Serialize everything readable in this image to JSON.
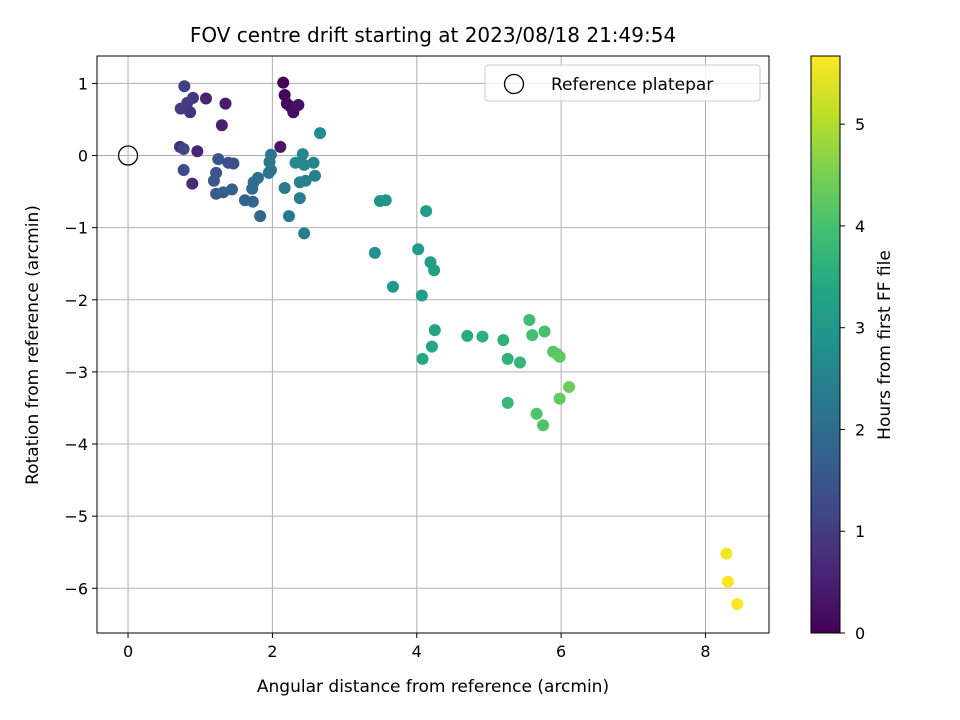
{
  "chart_data": {
    "type": "scatter",
    "title": "FOV centre drift starting at 2023/08/18 21:49:54",
    "xlabel": "Angular distance from reference (arcmin)",
    "ylabel": "Rotation from reference (arcmin)",
    "xlim": [
      -0.43,
      8.88
    ],
    "ylim": [
      -6.62,
      1.38
    ],
    "xticks": [
      0,
      2,
      4,
      6,
      8
    ],
    "yticks": [
      1,
      0,
      -1,
      -2,
      -3,
      -4,
      -5,
      -6
    ],
    "grid": true,
    "legend": {
      "position": "top-right",
      "entries": [
        "Reference platepar"
      ]
    },
    "reference_point": {
      "x": 0,
      "y": 0
    },
    "colorbar": {
      "label": "Hours from first FF file",
      "range": [
        0,
        5.67
      ],
      "ticks": [
        0,
        1,
        2,
        3,
        4,
        5
      ],
      "colormap": "viridis"
    },
    "points": [
      {
        "x": 2.15,
        "y": 1.01,
        "h": 0.0
      },
      {
        "x": 2.17,
        "y": 0.84,
        "h": 0.05
      },
      {
        "x": 2.2,
        "y": 0.72,
        "h": 0.1
      },
      {
        "x": 2.25,
        "y": 0.68,
        "h": 0.15
      },
      {
        "x": 2.29,
        "y": 0.6,
        "h": 0.2
      },
      {
        "x": 2.36,
        "y": 0.7,
        "h": 0.25
      },
      {
        "x": 2.11,
        "y": 0.12,
        "h": 0.35
      },
      {
        "x": 1.35,
        "y": 0.72,
        "h": 0.45
      },
      {
        "x": 1.3,
        "y": 0.42,
        "h": 0.5
      },
      {
        "x": 1.08,
        "y": 0.79,
        "h": 0.55
      },
      {
        "x": 0.96,
        "y": 0.06,
        "h": 0.6
      },
      {
        "x": 0.89,
        "y": -0.39,
        "h": 0.7
      },
      {
        "x": 0.72,
        "y": 0.12,
        "h": 0.75
      },
      {
        "x": 0.86,
        "y": 0.6,
        "h": 0.85
      },
      {
        "x": 0.9,
        "y": 0.8,
        "h": 0.9
      },
      {
        "x": 0.82,
        "y": 0.73,
        "h": 0.95
      },
      {
        "x": 0.73,
        "y": 0.65,
        "h": 1.0
      },
      {
        "x": 0.78,
        "y": 0.96,
        "h": 1.1
      },
      {
        "x": 0.77,
        "y": 0.09,
        "h": 1.2
      },
      {
        "x": 0.77,
        "y": -0.2,
        "h": 1.3
      },
      {
        "x": 1.39,
        "y": -0.1,
        "h": 1.35
      },
      {
        "x": 1.46,
        "y": -0.11,
        "h": 1.4
      },
      {
        "x": 1.25,
        "y": -0.05,
        "h": 1.45
      },
      {
        "x": 1.22,
        "y": -0.24,
        "h": 1.5
      },
      {
        "x": 1.19,
        "y": -0.35,
        "h": 1.55
      },
      {
        "x": 1.22,
        "y": -0.53,
        "h": 1.6
      },
      {
        "x": 1.32,
        "y": -0.51,
        "h": 1.65
      },
      {
        "x": 1.44,
        "y": -0.47,
        "h": 1.7
      },
      {
        "x": 1.62,
        "y": -0.62,
        "h": 1.8
      },
      {
        "x": 1.73,
        "y": -0.64,
        "h": 1.85
      },
      {
        "x": 1.83,
        "y": -0.84,
        "h": 1.9
      },
      {
        "x": 1.72,
        "y": -0.46,
        "h": 1.95
      },
      {
        "x": 1.74,
        "y": -0.37,
        "h": 2.0
      },
      {
        "x": 1.8,
        "y": -0.31,
        "h": 2.05
      },
      {
        "x": 1.95,
        "y": -0.24,
        "h": 2.1
      },
      {
        "x": 1.98,
        "y": -0.2,
        "h": 2.15
      },
      {
        "x": 1.96,
        "y": -0.09,
        "h": 2.2
      },
      {
        "x": 1.98,
        "y": 0.01,
        "h": 2.25
      },
      {
        "x": 2.17,
        "y": -0.45,
        "h": 2.25
      },
      {
        "x": 2.23,
        "y": -0.84,
        "h": 2.3
      },
      {
        "x": 2.44,
        "y": -1.08,
        "h": 2.35
      },
      {
        "x": 2.38,
        "y": -0.59,
        "h": 2.4
      },
      {
        "x": 2.38,
        "y": -0.37,
        "h": 2.45
      },
      {
        "x": 2.46,
        "y": -0.35,
        "h": 2.5
      },
      {
        "x": 2.59,
        "y": -0.28,
        "h": 2.5
      },
      {
        "x": 2.57,
        "y": -0.1,
        "h": 2.55
      },
      {
        "x": 2.44,
        "y": -0.13,
        "h": 2.6
      },
      {
        "x": 2.42,
        "y": 0.02,
        "h": 2.6
      },
      {
        "x": 2.32,
        "y": -0.1,
        "h": 2.65
      },
      {
        "x": 2.66,
        "y": 0.31,
        "h": 2.7
      },
      {
        "x": 3.42,
        "y": -1.35,
        "h": 2.85
      },
      {
        "x": 3.49,
        "y": -0.63,
        "h": 2.9
      },
      {
        "x": 3.57,
        "y": -0.62,
        "h": 2.95
      },
      {
        "x": 3.67,
        "y": -1.82,
        "h": 3.0
      },
      {
        "x": 4.02,
        "y": -1.3,
        "h": 3.05
      },
      {
        "x": 4.13,
        "y": -0.77,
        "h": 3.1
      },
      {
        "x": 4.19,
        "y": -1.48,
        "h": 3.15
      },
      {
        "x": 4.24,
        "y": -1.59,
        "h": 3.2
      },
      {
        "x": 4.07,
        "y": -1.94,
        "h": 3.2
      },
      {
        "x": 4.25,
        "y": -2.42,
        "h": 3.3
      },
      {
        "x": 4.21,
        "y": -2.65,
        "h": 3.35
      },
      {
        "x": 4.08,
        "y": -2.82,
        "h": 3.4
      },
      {
        "x": 4.7,
        "y": -2.5,
        "h": 3.5
      },
      {
        "x": 4.91,
        "y": -2.51,
        "h": 3.55
      },
      {
        "x": 5.2,
        "y": -2.56,
        "h": 3.6
      },
      {
        "x": 5.26,
        "y": -2.82,
        "h": 3.65
      },
      {
        "x": 5.43,
        "y": -2.87,
        "h": 3.7
      },
      {
        "x": 5.26,
        "y": -3.43,
        "h": 3.75
      },
      {
        "x": 5.56,
        "y": -2.28,
        "h": 3.9
      },
      {
        "x": 5.6,
        "y": -2.49,
        "h": 3.95
      },
      {
        "x": 5.77,
        "y": -2.44,
        "h": 4.0
      },
      {
        "x": 5.66,
        "y": -3.58,
        "h": 4.05
      },
      {
        "x": 5.75,
        "y": -3.74,
        "h": 4.1
      },
      {
        "x": 5.89,
        "y": -2.72,
        "h": 4.15
      },
      {
        "x": 5.94,
        "y": -2.75,
        "h": 4.2
      },
      {
        "x": 5.98,
        "y": -2.79,
        "h": 4.25
      },
      {
        "x": 5.98,
        "y": -3.37,
        "h": 4.3
      },
      {
        "x": 6.11,
        "y": -3.21,
        "h": 4.35
      },
      {
        "x": 8.29,
        "y": -5.52,
        "h": 5.6
      },
      {
        "x": 8.31,
        "y": -5.91,
        "h": 5.63
      },
      {
        "x": 8.44,
        "y": -6.22,
        "h": 5.67
      }
    ]
  }
}
